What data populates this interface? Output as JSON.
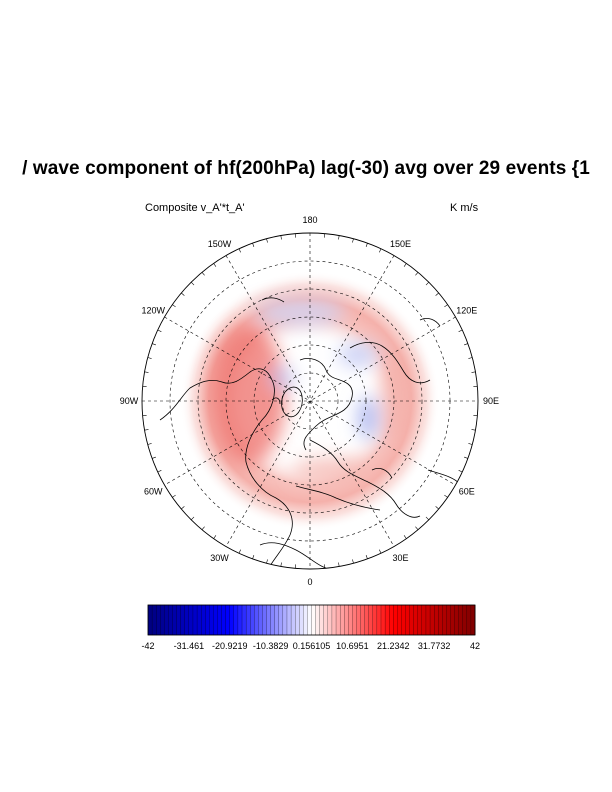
{
  "title": "/ wave component of hf(200hPa) lag(-30) avg over 29 events {1",
  "left_label": "Composite  v_A'*t_A'",
  "right_label": "K m/s",
  "longitude_labels": [
    "180",
    "150E",
    "120E",
    "90E",
    "60E",
    "30E",
    "0",
    "30W",
    "60W",
    "90W",
    "120W",
    "150W"
  ],
  "colorbar": {
    "min": -42,
    "max": 42,
    "labels": [
      "-42",
      "-31.461",
      "-20.9219",
      "-10.3829",
      "0.156105",
      "10.6951",
      "21.2342",
      "31.7732",
      "42"
    ],
    "colors": {
      "low": "#00007f",
      "mid": "#ffffff",
      "high": "#7f0000"
    }
  }
}
